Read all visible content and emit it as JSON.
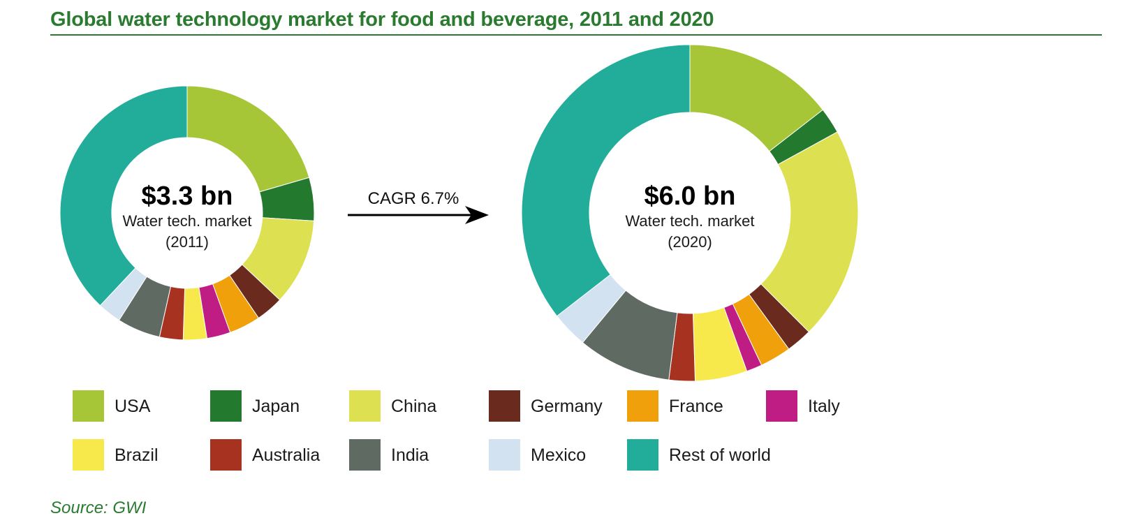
{
  "chart_data": {
    "type": "donut",
    "title": "Global water technology market for food and beverage, 2011 and 2020",
    "source": "Source: GWI",
    "arrow_label": "CAGR 6.7%",
    "categories": [
      "USA",
      "Japan",
      "China",
      "Germany",
      "France",
      "Italy",
      "Brazil",
      "Australia",
      "India",
      "Mexico",
      "Rest of world"
    ],
    "colors": [
      "#a6c638",
      "#237a2e",
      "#dde050",
      "#6b2a1e",
      "#efa00a",
      "#c01d84",
      "#f7e94c",
      "#a83220",
      "#5f6b62",
      "#d3e2f0",
      "#22ad9b"
    ],
    "charts": [
      {
        "year": "2011",
        "value_label": "$3.3 bn",
        "line1": "Water tech. market",
        "line2": "(2011)",
        "values": [
          20.5,
          5.5,
          11.0,
          3.5,
          4.0,
          3.0,
          3.0,
          3.0,
          5.5,
          3.0,
          38.0
        ]
      },
      {
        "year": "2020",
        "value_label": "$6.0 bn",
        "line1": "Water tech. market",
        "line2": "(2020)",
        "values": [
          14.5,
          2.5,
          20.5,
          2.5,
          3.0,
          1.5,
          5.0,
          2.5,
          9.0,
          3.5,
          35.5
        ]
      }
    ]
  }
}
